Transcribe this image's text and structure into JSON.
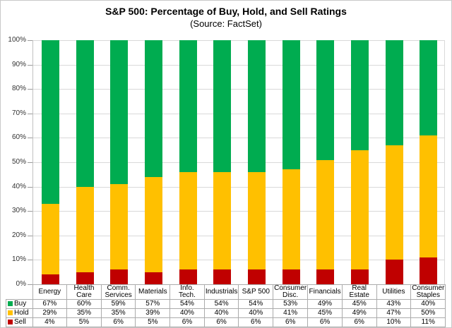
{
  "title": "S&P 500: Percentage of Buy, Hold, and Sell Ratings",
  "subtitle": "(Source: FactSet)",
  "colors": {
    "buy": "#00AC50",
    "hold": "#FFC000",
    "sell": "#C00000"
  },
  "chart_data": {
    "type": "bar",
    "stacked": true,
    "title": "S&P 500: Percentage of Buy, Hold, and Sell Ratings",
    "subtitle": "(Source: FactSet)",
    "xlabel": "",
    "ylabel": "",
    "ylim": [
      0,
      100
    ],
    "yticks": [
      "0%",
      "10%",
      "20%",
      "30%",
      "40%",
      "50%",
      "60%",
      "70%",
      "80%",
      "90%",
      "100%"
    ],
    "grid": true,
    "legend_position": "table-left",
    "categories": [
      "Energy",
      "Health Care",
      "Comm. Services",
      "Materials",
      "Info. Tech.",
      "Industrials",
      "S&P 500",
      "Consumer Disc.",
      "Financials",
      "Real Estate",
      "Utilities",
      "Consumer Staples"
    ],
    "series": [
      {
        "name": "Buy",
        "color": "#00AC50",
        "values": [
          67,
          60,
          59,
          57,
          54,
          54,
          54,
          53,
          49,
          45,
          43,
          40
        ]
      },
      {
        "name": "Hold",
        "color": "#FFC000",
        "values": [
          29,
          35,
          35,
          39,
          40,
          40,
          40,
          41,
          45,
          49,
          47,
          50
        ]
      },
      {
        "name": "Sell",
        "color": "#C00000",
        "values": [
          4,
          5,
          6,
          5,
          6,
          6,
          6,
          6,
          6,
          6,
          10,
          11
        ]
      }
    ],
    "value_suffix": "%"
  }
}
